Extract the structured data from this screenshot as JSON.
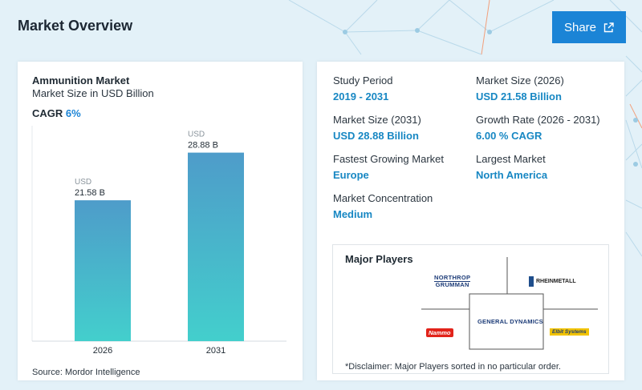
{
  "header": {
    "title": "Market Overview",
    "share_label": "Share"
  },
  "chart": {
    "title": "Ammunition Market",
    "subtitle": "Market Size in USD Billion",
    "cagr_label": "CAGR",
    "cagr_value": "6%",
    "source": "Source: Mordor Intelligence"
  },
  "chart_data": {
    "type": "bar",
    "title": "Ammunition Market",
    "subtitle": "Market Size in USD Billion",
    "categories": [
      "2026",
      "2031"
    ],
    "values": [
      21.58,
      28.88
    ],
    "data_labels": [
      {
        "unit": "USD",
        "value": "21.58 B"
      },
      {
        "unit": "USD",
        "value": "28.88 B"
      }
    ],
    "ylim": [
      0,
      33
    ],
    "grid": false,
    "colors": {
      "bar_top": "#4e9cca",
      "bar_bottom": "#43cfcc"
    }
  },
  "stats": [
    {
      "label": "Study Period",
      "value": "2019 - 2031"
    },
    {
      "label": "Market Size (2026)",
      "value": "USD 21.58 Billion"
    },
    {
      "label": "Market Size (2031)",
      "value": "USD 28.88 Billion"
    },
    {
      "label": "Growth Rate (2026 - 2031)",
      "value": "6.00 % CAGR"
    },
    {
      "label": "Fastest Growing Market",
      "value": "Europe"
    },
    {
      "label": "Largest Market",
      "value": "North America"
    },
    {
      "label": "Market Concentration",
      "value": "Medium"
    }
  ],
  "players": {
    "title": "Major Players",
    "disclaimer": "*Disclaimer: Major Players sorted in no particular order.",
    "logos": {
      "northrop_line1": "NORTHROP",
      "northrop_line2": "GRUMMAN",
      "rheinmetall": "RHEINMETALL",
      "general_dynamics": "GENERAL DYNAMICS",
      "nammo": "Nammo",
      "elbit": "Elbit Systems"
    }
  },
  "colors": {
    "accent": "#1b84d6",
    "value_text": "#1787c3",
    "hero_bg": "#e3f1f8"
  }
}
